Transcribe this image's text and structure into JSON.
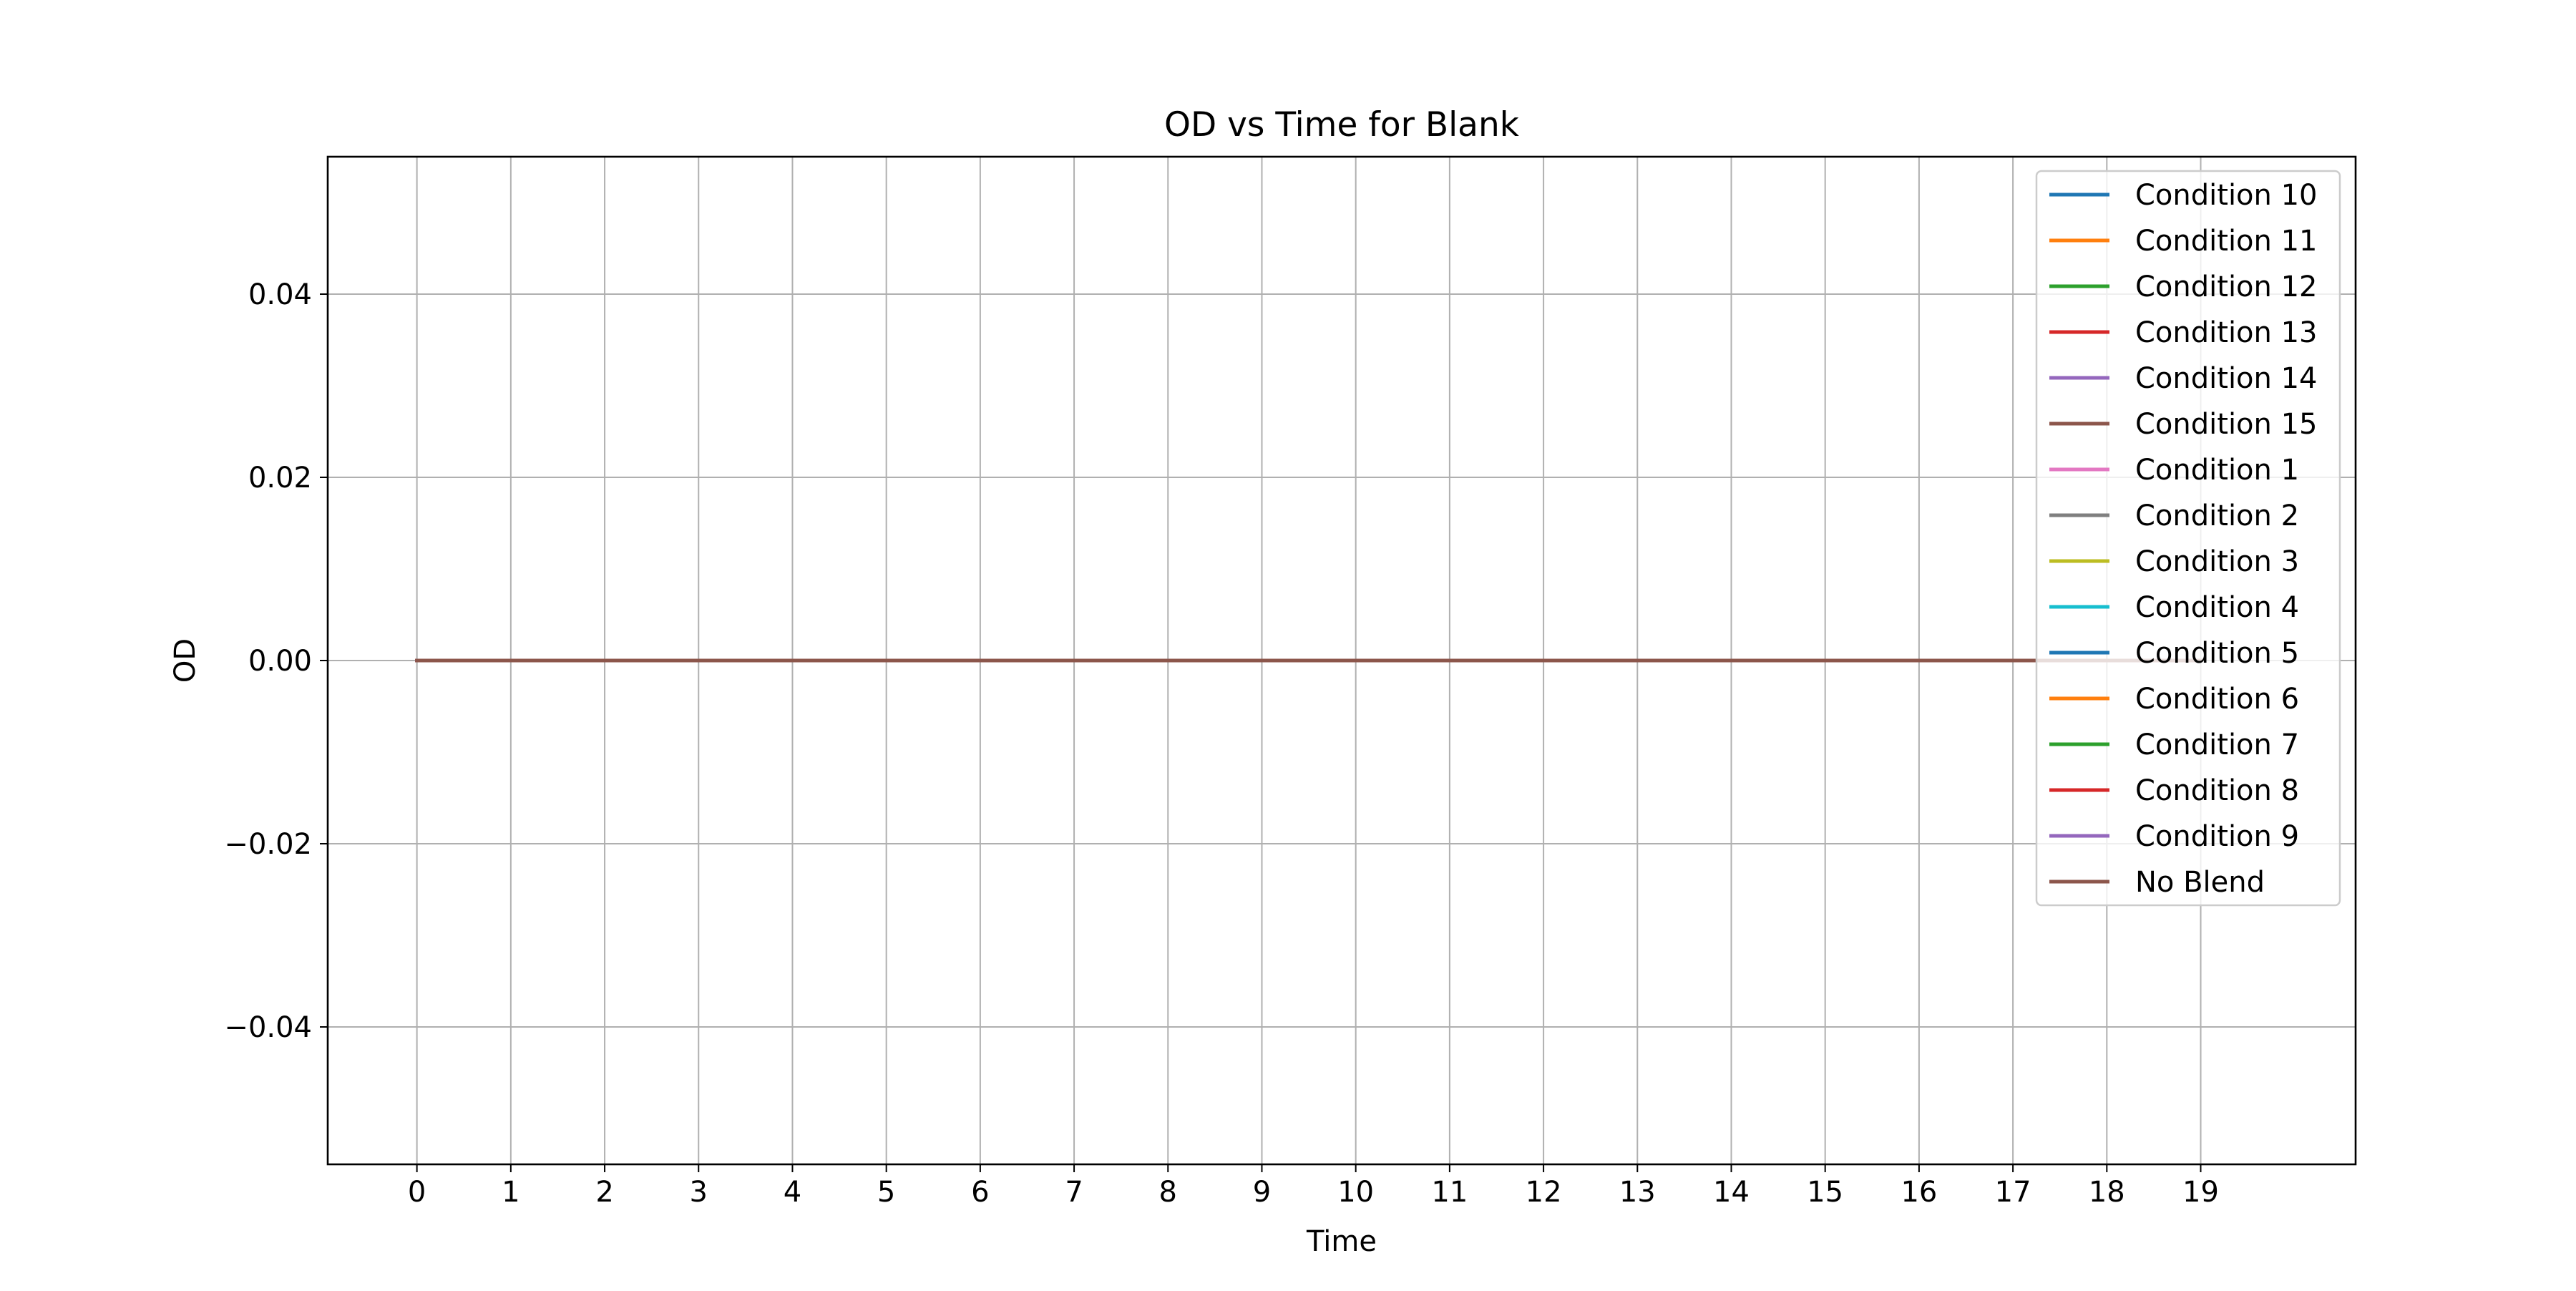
{
  "chart_data": {
    "type": "line",
    "title": "OD vs Time for Blank",
    "xlabel": "Time",
    "ylabel": "OD",
    "xlim": [
      -0.95,
      20.65
    ],
    "ylim": [
      -0.055,
      0.055
    ],
    "x_ticks": [
      0,
      1,
      2,
      3,
      4,
      5,
      6,
      7,
      8,
      9,
      10,
      11,
      12,
      13,
      14,
      15,
      16,
      17,
      18,
      19
    ],
    "y_ticks": [
      {
        "value": 0.04,
        "label": "0.04"
      },
      {
        "value": 0.02,
        "label": "0.02"
      },
      {
        "value": 0.0,
        "label": "0.00"
      },
      {
        "value": -0.02,
        "label": "−0.02"
      },
      {
        "value": -0.04,
        "label": "−0.04"
      }
    ],
    "grid": true,
    "legend_position": "upper right",
    "x": [
      0,
      1,
      2,
      3,
      4,
      5,
      6,
      7,
      8,
      9,
      10,
      11,
      12,
      13,
      14,
      15,
      16,
      17,
      18,
      19
    ],
    "series": [
      {
        "name": "Condition 10",
        "color": "#1f77b4",
        "values": [
          0,
          0,
          0,
          0,
          0,
          0,
          0,
          0,
          0,
          0,
          0,
          0,
          0,
          0,
          0,
          0,
          0,
          0,
          0,
          0
        ]
      },
      {
        "name": "Condition 11",
        "color": "#ff7f0e",
        "values": [
          0,
          0,
          0,
          0,
          0,
          0,
          0,
          0,
          0,
          0,
          0,
          0,
          0,
          0,
          0,
          0,
          0,
          0,
          0,
          0
        ]
      },
      {
        "name": "Condition 12",
        "color": "#2ca02c",
        "values": [
          0,
          0,
          0,
          0,
          0,
          0,
          0,
          0,
          0,
          0,
          0,
          0,
          0,
          0,
          0,
          0,
          0,
          0,
          0,
          0
        ]
      },
      {
        "name": "Condition 13",
        "color": "#d62728",
        "values": [
          0,
          0,
          0,
          0,
          0,
          0,
          0,
          0,
          0,
          0,
          0,
          0,
          0,
          0,
          0,
          0,
          0,
          0,
          0,
          0
        ]
      },
      {
        "name": "Condition 14",
        "color": "#9467bd",
        "values": [
          0,
          0,
          0,
          0,
          0,
          0,
          0,
          0,
          0,
          0,
          0,
          0,
          0,
          0,
          0,
          0,
          0,
          0,
          0,
          0
        ]
      },
      {
        "name": "Condition 15",
        "color": "#8c564b",
        "values": [
          0,
          0,
          0,
          0,
          0,
          0,
          0,
          0,
          0,
          0,
          0,
          0,
          0,
          0,
          0,
          0,
          0,
          0,
          0,
          0
        ]
      },
      {
        "name": "Condition 1",
        "color": "#e377c2",
        "values": [
          0,
          0,
          0,
          0,
          0,
          0,
          0,
          0,
          0,
          0,
          0,
          0,
          0,
          0,
          0,
          0,
          0,
          0,
          0,
          0
        ]
      },
      {
        "name": "Condition 2",
        "color": "#7f7f7f",
        "values": [
          0,
          0,
          0,
          0,
          0,
          0,
          0,
          0,
          0,
          0,
          0,
          0,
          0,
          0,
          0,
          0,
          0,
          0,
          0,
          0
        ]
      },
      {
        "name": "Condition 3",
        "color": "#bcbd22",
        "values": [
          0,
          0,
          0,
          0,
          0,
          0,
          0,
          0,
          0,
          0,
          0,
          0,
          0,
          0,
          0,
          0,
          0,
          0,
          0,
          0
        ]
      },
      {
        "name": "Condition 4",
        "color": "#17becf",
        "values": [
          0,
          0,
          0,
          0,
          0,
          0,
          0,
          0,
          0,
          0,
          0,
          0,
          0,
          0,
          0,
          0,
          0,
          0,
          0,
          0
        ]
      },
      {
        "name": "Condition 5",
        "color": "#1f77b4",
        "values": [
          0,
          0,
          0,
          0,
          0,
          0,
          0,
          0,
          0,
          0,
          0,
          0,
          0,
          0,
          0,
          0,
          0,
          0,
          0,
          0
        ]
      },
      {
        "name": "Condition 6",
        "color": "#ff7f0e",
        "values": [
          0,
          0,
          0,
          0,
          0,
          0,
          0,
          0,
          0,
          0,
          0,
          0,
          0,
          0,
          0,
          0,
          0,
          0,
          0,
          0
        ]
      },
      {
        "name": "Condition 7",
        "color": "#2ca02c",
        "values": [
          0,
          0,
          0,
          0,
          0,
          0,
          0,
          0,
          0,
          0,
          0,
          0,
          0,
          0,
          0,
          0,
          0,
          0,
          0,
          0
        ]
      },
      {
        "name": "Condition 8",
        "color": "#d62728",
        "values": [
          0,
          0,
          0,
          0,
          0,
          0,
          0,
          0,
          0,
          0,
          0,
          0,
          0,
          0,
          0,
          0,
          0,
          0,
          0,
          0
        ]
      },
      {
        "name": "Condition 9",
        "color": "#9467bd",
        "values": [
          0,
          0,
          0,
          0,
          0,
          0,
          0,
          0,
          0,
          0,
          0,
          0,
          0,
          0,
          0,
          0,
          0,
          0,
          0,
          0
        ]
      },
      {
        "name": "No Blend",
        "color": "#8c564b",
        "values": [
          0,
          0,
          0,
          0,
          0,
          0,
          0,
          0,
          0,
          0,
          0,
          0,
          0,
          0,
          0,
          0,
          0,
          0,
          0,
          0
        ]
      }
    ]
  }
}
